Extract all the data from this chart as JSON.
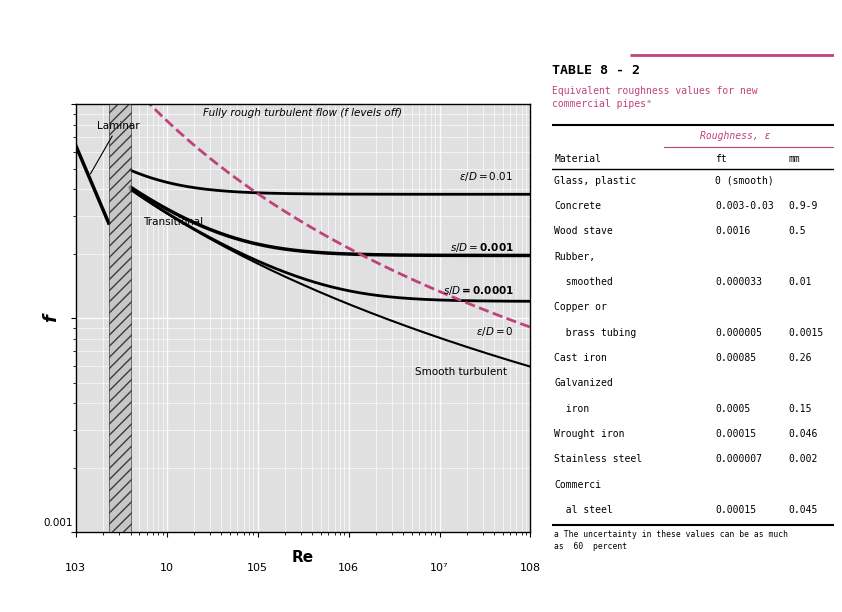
{
  "title": "TABLE 8 - 2",
  "subtitle": "Equivalent roughness values for new\ncommercial pipesᵃ",
  "roughness_header": "Roughness, ε",
  "col_material": "Material",
  "col_ft": "ft",
  "col_mm": "mm",
  "table_rows": [
    [
      "Glass, plastic",
      "0 (smooth)",
      ""
    ],
    [
      "Concrete",
      "0.003-0.03",
      "0.9-9"
    ],
    [
      "Wood stave",
      "0.0016",
      "0.5"
    ],
    [
      "Rubber,",
      "",
      ""
    ],
    [
      "  smoothed",
      "0.000033",
      "0.01"
    ],
    [
      "Copper or",
      "",
      ""
    ],
    [
      "  brass tubing",
      "0.000005",
      "0.0015"
    ],
    [
      "Cast iron",
      "0.00085",
      "0.26"
    ],
    [
      "Galvanized",
      "",
      ""
    ],
    [
      "  iron",
      "0.0005",
      "0.15"
    ],
    [
      "Wrought iron",
      "0.00015",
      "0.046"
    ],
    [
      "Stainless steel",
      "0.000007",
      "0.002"
    ],
    [
      "Commerci",
      "",
      ""
    ],
    [
      "  al steel",
      "0.00015",
      "0.045"
    ]
  ],
  "footnote": "a The uncertainty in these values can be as much\nas  60  percent",
  "xlabel": "Re",
  "ylabel": "f",
  "xlim": [
    1000.0,
    100000000.0
  ],
  "ylim": [
    0.001,
    0.1
  ],
  "curve_color": "#000000",
  "dashed_color": "#c0427a",
  "table_color": "#c0427a",
  "table_bg": "#ffffff",
  "plot_bg": "#e0e0e0"
}
